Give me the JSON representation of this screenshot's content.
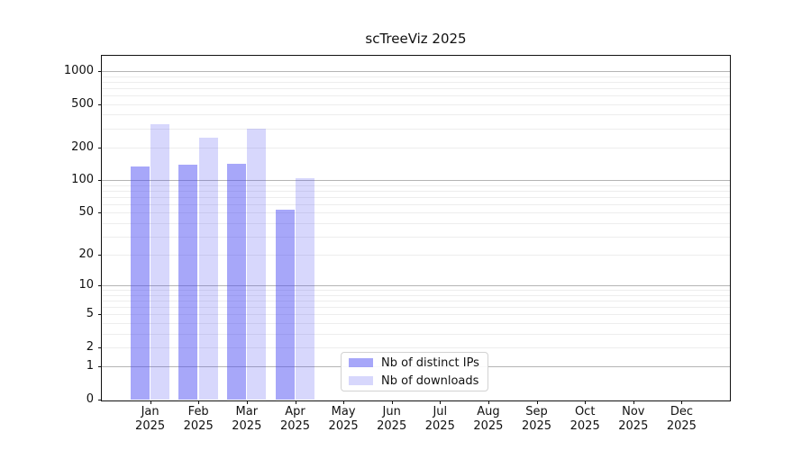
{
  "chart_data": {
    "type": "bar",
    "title": "scTreeViz 2025",
    "year": "2025",
    "months": [
      "Jan",
      "Feb",
      "Mar",
      "Apr",
      "May",
      "Jun",
      "Jul",
      "Aug",
      "Sep",
      "Oct",
      "Nov",
      "Dec"
    ],
    "series": [
      {
        "name": "Nb of distinct IPs",
        "color": "rgba(68,68,242,0.47)",
        "solid_hex": "#aaaaf7",
        "values": [
          134,
          140,
          142,
          53,
          null,
          null,
          null,
          null,
          null,
          null,
          null,
          null
        ]
      },
      {
        "name": "Nb of downloads",
        "color": "rgba(68,68,242,0.21)",
        "solid_hex": "#dadaf8",
        "values": [
          325,
          245,
          298,
          105,
          null,
          null,
          null,
          null,
          null,
          null,
          null,
          null
        ]
      }
    ],
    "y_scale": "log10(1+v)",
    "y_ticks": [
      0,
      1,
      2,
      5,
      10,
      20,
      50,
      100,
      200,
      500,
      1000
    ],
    "y_major_gridlines": [
      1,
      10,
      100,
      1000
    ],
    "y_minor_gridlines": [
      2,
      3,
      4,
      5,
      6,
      7,
      8,
      9,
      20,
      30,
      40,
      50,
      60,
      70,
      80,
      90,
      200,
      300,
      400,
      500,
      600,
      700,
      800,
      900
    ],
    "ylim": [
      0,
      1380
    ],
    "grid": "horizontal",
    "legend_position": "lower center",
    "colors": {
      "bar_distinct_ips": "#aaaaf7",
      "bar_downloads": "#dadaf8",
      "grid_major": "#b5b5b5",
      "grid_minor": "#ededed",
      "spine": "#111111"
    }
  }
}
